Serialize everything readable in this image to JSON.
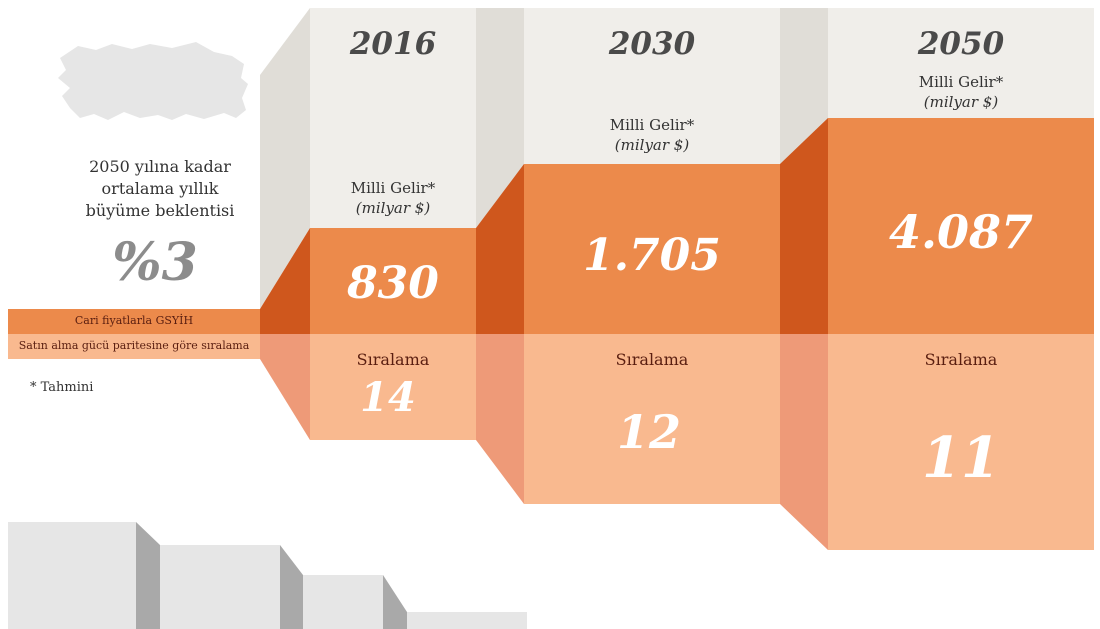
{
  "growth": {
    "text_line1": "2050 yılına kadar",
    "text_line2": "ortalama yıllık",
    "text_line3": "büyüme beklentisi",
    "value": "%3"
  },
  "bands": {
    "gdp_label": "Cari fiyatlarla GSYİH",
    "ppp_label": "Satın alma gücü paritesine göre sıralama"
  },
  "footnote": "* Tahmini",
  "metric_label": "Milli Gelir*",
  "metric_unit": "(milyar $)",
  "rank_label": "Sıralama",
  "columns": [
    {
      "year": "2016",
      "gdp": "830",
      "rank": "14"
    },
    {
      "year": "2030",
      "gdp": "1.705",
      "rank": "12"
    },
    {
      "year": "2050",
      "gdp": "4.087",
      "rank": "11"
    }
  ],
  "colors": {
    "orange": "#EC8A4B",
    "dark_orange": "#CF571D",
    "peach": "#F9B98F",
    "salmon": "#EE9A78",
    "beige": "#F0EEEA",
    "beige_side": "#E0DDD7",
    "gray_light": "#E6E6E6",
    "gray_dark": "#A9A9A9"
  },
  "chart_data": {
    "type": "bar",
    "categories": [
      "2016",
      "2030",
      "2050"
    ],
    "series": [
      {
        "name": "Milli Gelir* (milyar $)",
        "values": [
          830,
          1705,
          4087
        ]
      },
      {
        "name": "Sıralama",
        "values": [
          14,
          12,
          11
        ]
      }
    ]
  }
}
